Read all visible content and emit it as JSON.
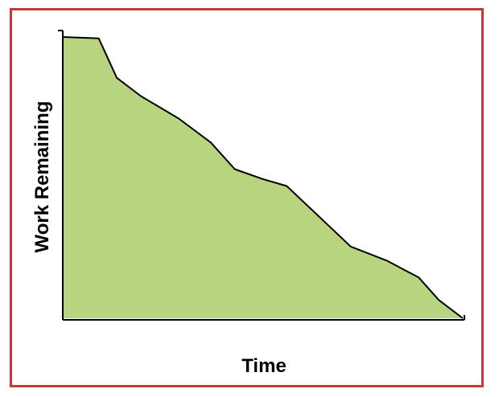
{
  "chart_data": {
    "type": "area",
    "title": "",
    "xlabel": "Time",
    "ylabel": "Work Remaining",
    "grid": false,
    "legend": "none",
    "xlim": [
      0,
      100
    ],
    "ylim": [
      0,
      100
    ],
    "series": [
      {
        "x": [
          0,
          9,
          13.5,
          19.5,
          29,
          37,
          43,
          50,
          56,
          72,
          81,
          89,
          94,
          100
        ],
        "values": [
          100,
          99.5,
          85.5,
          79,
          71,
          62.5,
          53,
          49.5,
          47,
          25.5,
          20.5,
          14.5,
          6.5,
          0
        ]
      }
    ]
  },
  "colors": {
    "fill": "#b8d47f",
    "line": "#000000",
    "frame_border": "#c0393b"
  }
}
